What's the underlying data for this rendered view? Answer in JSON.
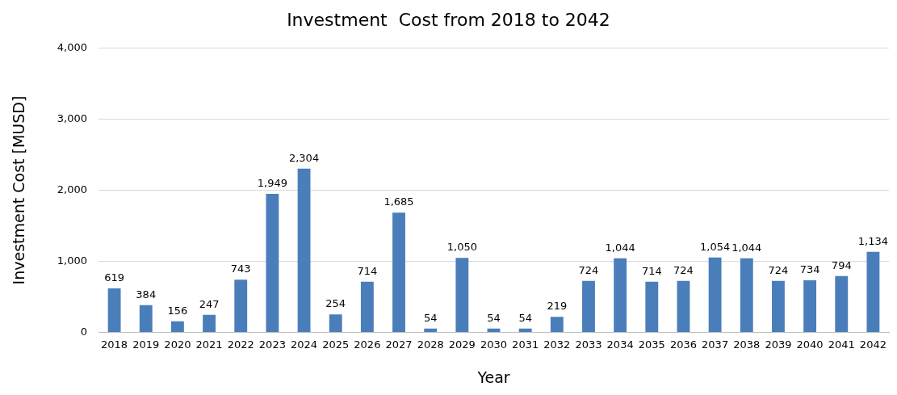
{
  "chart_data": {
    "type": "bar",
    "title": "Investment  Cost from 2018 to 2042",
    "xlabel": "Year",
    "ylabel": "Investment Cost [MUSD]",
    "categories": [
      "2018",
      "2019",
      "2020",
      "2021",
      "2022",
      "2023",
      "2024",
      "2025",
      "2026",
      "2027",
      "2028",
      "2029",
      "2030",
      "2031",
      "2032",
      "2033",
      "2034",
      "2035",
      "2036",
      "2037",
      "2038",
      "2039",
      "2040",
      "2041",
      "2042"
    ],
    "values": [
      619,
      384,
      156,
      247,
      743,
      1949,
      2304,
      254,
      714,
      1685,
      54,
      1050,
      54,
      54,
      219,
      724,
      1044,
      714,
      724,
      1054,
      1044,
      724,
      734,
      794,
      1134
    ],
    "value_labels": [
      "619",
      "384",
      "156",
      "247",
      "743",
      "1,949",
      "2,304",
      "254",
      "714",
      "1,685",
      "54",
      "1,050",
      "54",
      "54",
      "219",
      "724",
      "1,044",
      "714",
      "724",
      "1,054",
      "1,044",
      "724",
      "734",
      "794",
      "1,134"
    ],
    "color": "#4a7ebb",
    "ylim": [
      0,
      4000
    ],
    "yticks": [
      0,
      {
        "value": 1000,
        "label": "1,000"
      },
      {
        "value": 2000,
        "label": "2,000"
      },
      {
        "value": 3000,
        "label": "3,000"
      },
      {
        "value": 4000,
        "label": "4,000"
      }
    ],
    "grid": "y",
    "legend": false
  }
}
